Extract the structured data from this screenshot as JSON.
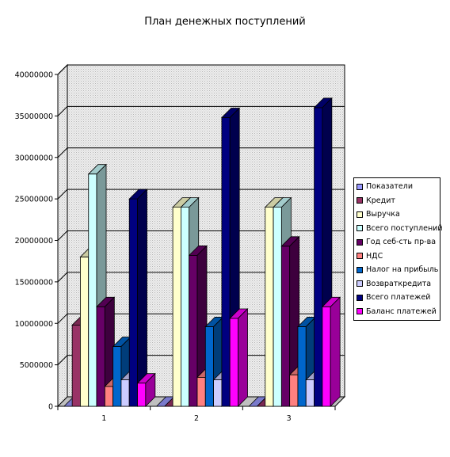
{
  "chart_data": {
    "type": "bar",
    "title": "План денежных поступлений",
    "categories": [
      "1",
      "2",
      "3"
    ],
    "ylim": [
      0,
      40000000
    ],
    "yticks": [
      "0",
      "5000000",
      "10000000",
      "15000000",
      "20000000",
      "25000000",
      "30000000",
      "35000000",
      "40000000"
    ],
    "ytick_values": [
      0,
      5000000,
      10000000,
      15000000,
      20000000,
      25000000,
      30000000,
      35000000,
      40000000
    ],
    "grid": true,
    "legend_position": "right",
    "series": [
      {
        "name": "Показатели",
        "color": "#9999FF",
        "values": [
          0,
          0,
          0
        ]
      },
      {
        "name": "Кредит",
        "color": "#993366",
        "values": [
          9800000,
          0,
          0
        ]
      },
      {
        "name": "Выручка",
        "color": "#FFFFCC",
        "values": [
          18000000,
          24000000,
          24000000
        ]
      },
      {
        "name": "Всего поступлений",
        "color": "#CCFFFF",
        "values": [
          28000000,
          24000000,
          24000000
        ]
      },
      {
        "name": "Год себ-сть пр-ва",
        "color": "#660066",
        "values": [
          12000000,
          18200000,
          19300000
        ]
      },
      {
        "name": "НДС",
        "color": "#FF8080",
        "values": [
          2400000,
          3500000,
          3800000
        ]
      },
      {
        "name": "Налог на прибыль",
        "color": "#0066CC",
        "values": [
          7200000,
          9600000,
          9600000
        ]
      },
      {
        "name": "Возвраткредита",
        "color": "#CCCCFF",
        "values": [
          3200000,
          3200000,
          3200000
        ]
      },
      {
        "name": "Всего платежей",
        "color": "#000080",
        "values": [
          25000000,
          34800000,
          36000000
        ]
      },
      {
        "name": "Баланс платежей",
        "color": "#FF00FF",
        "values": [
          2800000,
          10600000,
          12000000
        ]
      }
    ]
  }
}
